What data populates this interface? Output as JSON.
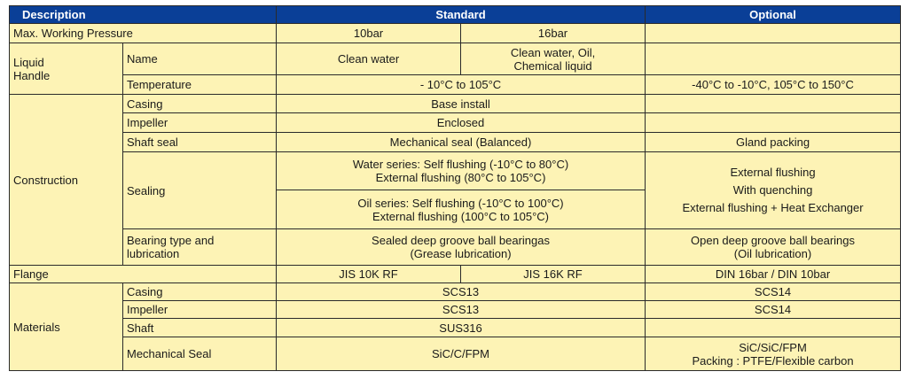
{
  "header": {
    "description": "Description",
    "standard": "Standard",
    "optional": "Optional"
  },
  "rows": {
    "max_pressure": {
      "label": "Max. Working Pressure",
      "std_a": "10bar",
      "std_b": "16bar",
      "optional": ""
    },
    "liquid": {
      "group_line1": "Liquid",
      "group_line2": "Handle",
      "name": {
        "label": "Name",
        "std_a": "Clean water",
        "std_b_line1": "Clean water, Oil,",
        "std_b_line2": "Chemical liquid",
        "optional": ""
      },
      "temperature": {
        "label": "Temperature",
        "standard": "- 10°C to 105°C",
        "optional": "-40°C to -10°C, 105°C to 150°C"
      }
    },
    "construction": {
      "group": "Construction",
      "casing": {
        "label": "Casing",
        "standard": "Base install",
        "optional": ""
      },
      "impeller": {
        "label": "Impeller",
        "standard": "Enclosed",
        "optional": ""
      },
      "shaft_seal": {
        "label": "Shaft seal",
        "standard": "Mechanical seal (Balanced)",
        "optional": "Gland packing"
      },
      "sealing": {
        "label": "Sealing",
        "water_line1": "Water series: Self flushing (-10°C to 80°C)",
        "water_line2": "External flushing (80°C to 105°C)",
        "oil_line1": "Oil series: Self flushing (-10°C to 100°C)",
        "oil_line2": "External flushing (100°C to 105°C)",
        "opt_line1": "External flushing",
        "opt_line2": "With quenching",
        "opt_line3": "External flushing + Heat Exchanger"
      },
      "bearing": {
        "label_line1": "Bearing type and",
        "label_line2": "lubrication",
        "std_line1": "Sealed deep groove ball bearingas",
        "std_line2": "(Grease lubrication)",
        "opt_line1": "Open deep groove ball bearings",
        "opt_line2": "(Oil lubrication)"
      }
    },
    "flange": {
      "label": "Flange",
      "std_a": "JIS 10K RF",
      "std_b": "JIS 16K RF",
      "optional": "DIN 16bar / DIN 10bar"
    },
    "materials": {
      "group": "Materials",
      "casing": {
        "label": "Casing",
        "standard": "SCS13",
        "optional": "SCS14"
      },
      "impeller": {
        "label": "Impeller",
        "standard": "SCS13",
        "optional": "SCS14"
      },
      "shaft": {
        "label": "Shaft",
        "standard": "SUS316",
        "optional": ""
      },
      "mech_seal": {
        "label": "Mechanical Seal",
        "standard": "SiC/C/FPM",
        "opt_line1": "SiC/SiC/FPM",
        "opt_line2": "Packing : PTFE/Flexible carbon"
      }
    }
  },
  "colors": {
    "header_bg": "#0a3f97",
    "header_text": "#ffffff",
    "cell_bg": "#fdf3b5",
    "border": "#2a2a2a"
  }
}
